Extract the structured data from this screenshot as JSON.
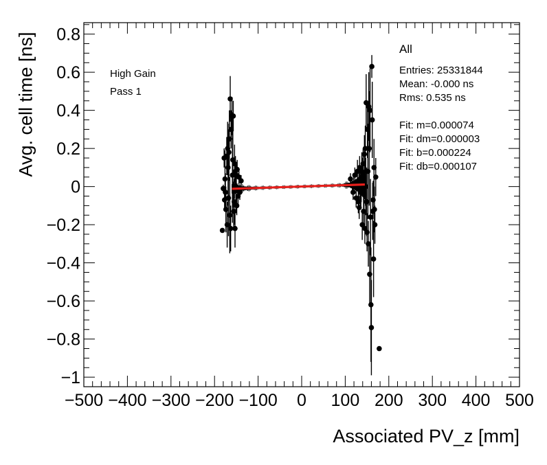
{
  "chart_data": {
    "type": "scatter",
    "xlabel": "Associated PV_z [mm]",
    "ylabel": "Avg. cell time [ns]",
    "xlim": [
      -500,
      500
    ],
    "ylim": [
      -1.05,
      0.86
    ],
    "x_ticks": [
      -500,
      -400,
      -300,
      -200,
      -100,
      0,
      100,
      200,
      300,
      400,
      500
    ],
    "x_tick_labels": [
      "−500",
      "−400",
      "−300",
      "−200",
      "−100",
      "0",
      "100",
      "200",
      "300",
      "400",
      "500"
    ],
    "y_ticks": [
      -1,
      -0.8,
      -0.6,
      -0.4,
      -0.2,
      0,
      0.2,
      0.4,
      0.6,
      0.8
    ],
    "y_tick_labels": [
      "−1",
      "−0.8",
      "−0.6",
      "−0.4",
      "−0.2",
      "0",
      "0.2",
      "0.4",
      "0.6",
      "0.8"
    ],
    "annotations_left": [
      "High Gain",
      "Pass 1"
    ],
    "stats": {
      "title": "All",
      "lines": [
        "Entries: 25331844",
        "Mean: -0.000 ns",
        "Rms: 0.535 ns",
        "",
        "Fit: m=0.000074",
        "Fit: dm=0.000003",
        "Fit: b=0.000224",
        "Fit: db=0.000107"
      ]
    },
    "fit_line": {
      "color": "#e8201c",
      "x": [
        -160,
        145
      ],
      "y": [
        -0.0116,
        0.0109
      ]
    },
    "marker_color": "#000000",
    "dense_band": {
      "x_min": -160,
      "x_max": 148,
      "halfwidth": [
        [
          -160,
          0.03
        ],
        [
          -150,
          0.025
        ],
        [
          -140,
          0.012
        ],
        [
          -120,
          0.008
        ],
        [
          -100,
          0.006
        ],
        [
          -50,
          0.005
        ],
        [
          0,
          0.005
        ],
        [
          50,
          0.005
        ],
        [
          90,
          0.006
        ],
        [
          110,
          0.012
        ],
        [
          125,
          0.03
        ],
        [
          135,
          0.05
        ],
        [
          145,
          0.08
        ]
      ]
    },
    "points": [
      {
        "x": -182,
        "y": -0.23,
        "err": 0.0
      },
      {
        "x": -180,
        "y": -0.01,
        "err": 0.02
      },
      {
        "x": -178,
        "y": 0.15,
        "err": 0.05
      },
      {
        "x": -177,
        "y": -0.07,
        "err": 0.05
      },
      {
        "x": -176,
        "y": 0.04,
        "err": 0.15
      },
      {
        "x": -175,
        "y": -0.03,
        "err": 0.1
      },
      {
        "x": -174,
        "y": -0.12,
        "err": 0.12
      },
      {
        "x": -172,
        "y": 0.16,
        "err": 0.1
      },
      {
        "x": -171,
        "y": -0.2,
        "err": 0.12
      },
      {
        "x": -170,
        "y": 0.2,
        "err": 0.14
      },
      {
        "x": -169,
        "y": 0.1,
        "err": 0.2
      },
      {
        "x": -168,
        "y": -0.06,
        "err": 0.2
      },
      {
        "x": -167,
        "y": 0.18,
        "err": 0.15
      },
      {
        "x": -166,
        "y": 0.25,
        "err": 0.15
      },
      {
        "x": -165,
        "y": -0.15,
        "err": 0.2
      },
      {
        "x": -164,
        "y": 0.46,
        "err": 0.12
      },
      {
        "x": -163,
        "y": -0.22,
        "err": 0.12
      },
      {
        "x": -162,
        "y": 0.3,
        "err": 0.1
      },
      {
        "x": -160,
        "y": 0.37,
        "err": 0.1
      },
      {
        "x": -159,
        "y": 0.06,
        "err": 0.25
      },
      {
        "x": -158,
        "y": 0.14,
        "err": 0.25
      },
      {
        "x": -157,
        "y": 0.37,
        "err": 0.08
      },
      {
        "x": -156,
        "y": -0.13,
        "err": 0.1
      },
      {
        "x": -155,
        "y": -0.08,
        "err": 0.12
      },
      {
        "x": -154,
        "y": 0.12,
        "err": 0.1
      },
      {
        "x": -153,
        "y": -0.22,
        "err": 0.1
      },
      {
        "x": -152,
        "y": 0.08,
        "err": 0.08
      },
      {
        "x": -151,
        "y": -0.02,
        "err": 0.12
      },
      {
        "x": -150,
        "y": 0.06,
        "err": 0.06
      },
      {
        "x": -149,
        "y": -0.1,
        "err": 0.05
      },
      {
        "x": -148,
        "y": 0.09,
        "err": 0.05
      },
      {
        "x": -146,
        "y": -0.05,
        "err": 0.05
      },
      {
        "x": -144,
        "y": 0.05,
        "err": 0.04
      },
      {
        "x": -142,
        "y": -0.03,
        "err": 0.04
      },
      {
        "x": -139,
        "y": 0.03,
        "err": 0.03
      },
      {
        "x": 112,
        "y": 0.04,
        "err": 0.03
      },
      {
        "x": 118,
        "y": -0.03,
        "err": 0.04
      },
      {
        "x": 122,
        "y": 0.06,
        "err": 0.04
      },
      {
        "x": 125,
        "y": -0.06,
        "err": 0.05
      },
      {
        "x": 128,
        "y": 0.08,
        "err": 0.06
      },
      {
        "x": 130,
        "y": -0.08,
        "err": 0.06
      },
      {
        "x": 132,
        "y": -0.11,
        "err": 0.06
      },
      {
        "x": 133,
        "y": 0.1,
        "err": 0.06
      },
      {
        "x": 135,
        "y": -0.03,
        "err": 0.08
      },
      {
        "x": 136,
        "y": -0.02,
        "err": 0.1
      },
      {
        "x": 138,
        "y": 0.08,
        "err": 0.1
      },
      {
        "x": 139,
        "y": -0.2,
        "err": 0.08
      },
      {
        "x": 140,
        "y": 0.05,
        "err": 0.1
      },
      {
        "x": 141,
        "y": 0.12,
        "err": 0.08
      },
      {
        "x": 142,
        "y": -0.13,
        "err": 0.08
      },
      {
        "x": 143,
        "y": -0.04,
        "err": 0.1
      },
      {
        "x": 144,
        "y": 0.17,
        "err": 0.1
      },
      {
        "x": 145,
        "y": -0.22,
        "err": 0.08
      },
      {
        "x": 146,
        "y": 0.2,
        "err": 0.12
      },
      {
        "x": 147,
        "y": 0.0,
        "err": 0.15
      },
      {
        "x": 148,
        "y": 0.44,
        "err": 0.15
      },
      {
        "x": 149,
        "y": -0.08,
        "err": 0.18
      },
      {
        "x": 150,
        "y": -0.24,
        "err": 0.1
      },
      {
        "x": 151,
        "y": 0.3,
        "err": 0.15
      },
      {
        "x": 152,
        "y": 0.08,
        "err": 0.25
      },
      {
        "x": 153,
        "y": -0.3,
        "err": 0.12
      },
      {
        "x": 154,
        "y": 0.42,
        "err": 0.18
      },
      {
        "x": 155,
        "y": 0.2,
        "err": 0.3
      },
      {
        "x": 156,
        "y": -0.46,
        "err": 0.15
      },
      {
        "x": 157,
        "y": 0.4,
        "err": 0.22
      },
      {
        "x": 158,
        "y": -0.16,
        "err": 0.2
      },
      {
        "x": 159,
        "y": -0.62,
        "err": 0.3
      },
      {
        "x": 160,
        "y": -0.74,
        "err": 0.25
      },
      {
        "x": 161,
        "y": 0.63,
        "err": 0.06
      },
      {
        "x": 162,
        "y": 0.35,
        "err": 0.2
      },
      {
        "x": 163,
        "y": -0.13,
        "err": 0.15
      },
      {
        "x": 164,
        "y": -0.07,
        "err": 0.1
      },
      {
        "x": 165,
        "y": -0.38,
        "err": 0.2
      },
      {
        "x": 166,
        "y": 0.1,
        "err": 0.15
      },
      {
        "x": 167,
        "y": -0.12,
        "err": 0.12
      },
      {
        "x": 168,
        "y": -0.2,
        "err": 0.1
      },
      {
        "x": 170,
        "y": 0.05,
        "err": 0.1
      },
      {
        "x": 178,
        "y": -0.85,
        "err": 0.0
      }
    ]
  }
}
